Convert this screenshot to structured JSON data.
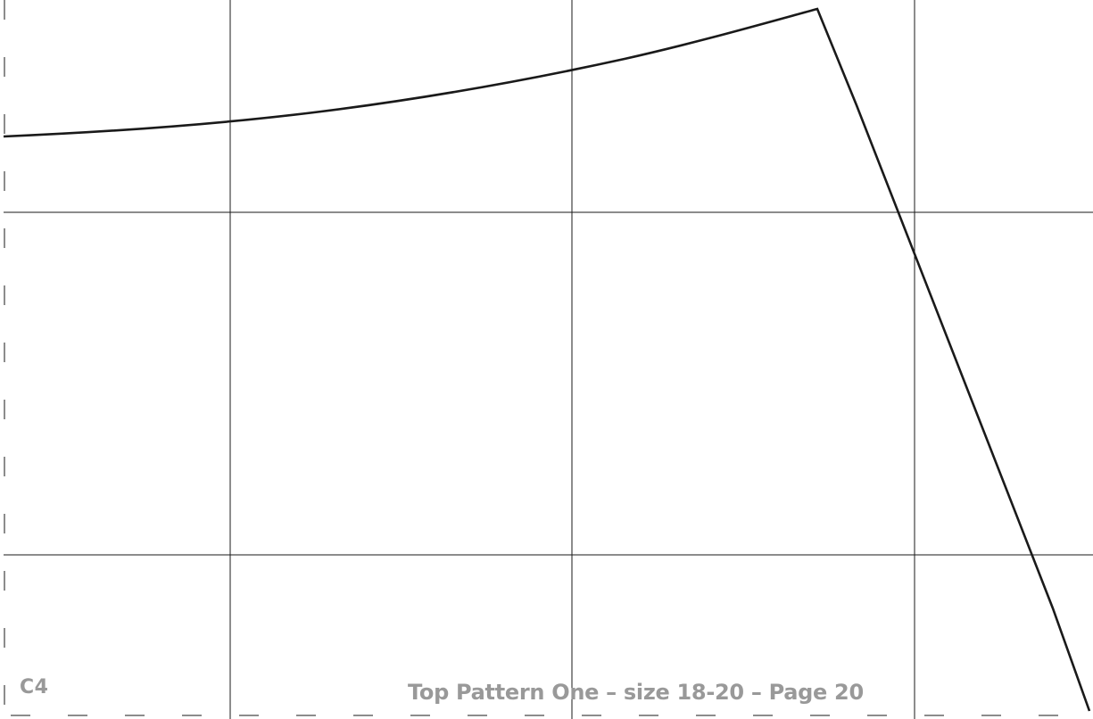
{
  "pattern": {
    "piece_code": "C4",
    "footer_text": "Top Pattern One – size 18-20 – Page 20",
    "line_color": "#1a1a1a",
    "grid_color": "#1a1a1a",
    "label_color": "#999999"
  }
}
